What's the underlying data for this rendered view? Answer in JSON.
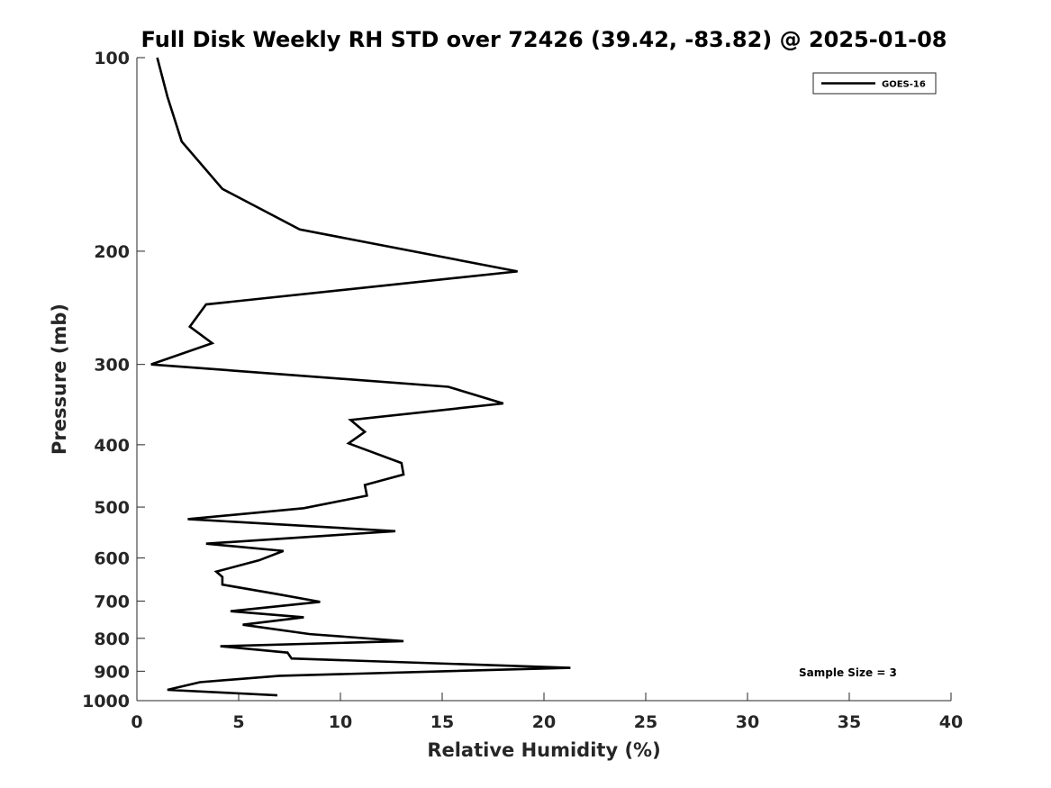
{
  "chart_data": {
    "type": "line",
    "title": "Full Disk Weekly RH STD over 72426 (39.42, -83.82) @ 2025-01-08",
    "xlabel": "Relative Humidity (%)",
    "ylabel": "Pressure (mb)",
    "xlim": [
      0,
      40
    ],
    "ylim": [
      100,
      1000
    ],
    "y_scale": "log",
    "y_reversed": true,
    "x_ticks": [
      0,
      5,
      10,
      15,
      20,
      25,
      30,
      35,
      40
    ],
    "y_ticks": [
      100,
      200,
      300,
      400,
      500,
      600,
      700,
      800,
      900,
      1000
    ],
    "grid": false,
    "legend_placement": "top-right",
    "series": [
      {
        "name": "GOES-16",
        "color": "#000000",
        "points": [
          [
            1.0,
            100
          ],
          [
            1.5,
            115
          ],
          [
            2.2,
            135
          ],
          [
            4.2,
            160
          ],
          [
            8.0,
            185
          ],
          [
            18.7,
            215
          ],
          [
            3.4,
            242
          ],
          [
            2.6,
            262
          ],
          [
            3.7,
            278
          ],
          [
            0.7,
            300
          ],
          [
            15.3,
            325
          ],
          [
            18.0,
            345
          ],
          [
            10.5,
            366
          ],
          [
            11.2,
            382
          ],
          [
            10.4,
            398
          ],
          [
            13.0,
            427
          ],
          [
            13.1,
            445
          ],
          [
            11.2,
            462
          ],
          [
            11.3,
            480
          ],
          [
            8.2,
            502
          ],
          [
            2.5,
            522
          ],
          [
            12.7,
            545
          ],
          [
            3.4,
            570
          ],
          [
            7.2,
            585
          ],
          [
            6.0,
            605
          ],
          [
            3.9,
            630
          ],
          [
            4.2,
            642
          ],
          [
            4.2,
            660
          ],
          [
            6.8,
            682
          ],
          [
            9.0,
            702
          ],
          [
            4.6,
            726
          ],
          [
            8.2,
            742
          ],
          [
            5.2,
            762
          ],
          [
            8.5,
            788
          ],
          [
            13.1,
            808
          ],
          [
            4.1,
            823
          ],
          [
            7.4,
            842
          ],
          [
            7.6,
            860
          ],
          [
            21.3,
            889
          ],
          [
            7.0,
            915
          ],
          [
            3.1,
            936
          ],
          [
            1.5,
            962
          ],
          [
            6.9,
            981
          ]
        ]
      }
    ],
    "annotations": [
      "Sample Size = 3"
    ]
  }
}
